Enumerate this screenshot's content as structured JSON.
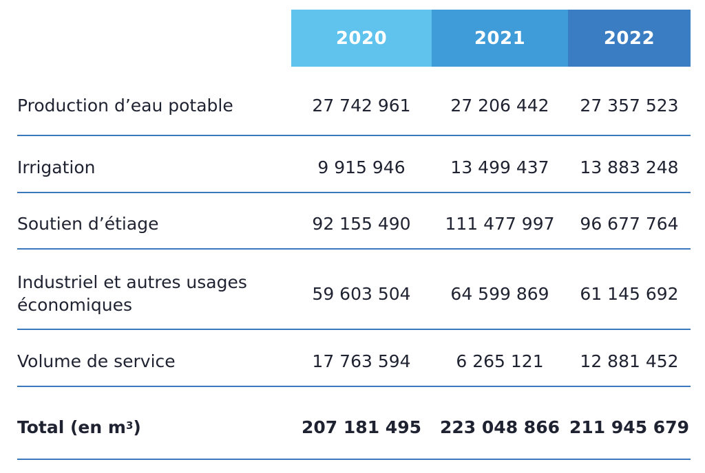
{
  "header": {
    "columns": [
      {
        "label": "2020",
        "color": "#5fc3ee"
      },
      {
        "label": "2021",
        "color": "#3f9cd9"
      },
      {
        "label": "2022",
        "color": "#3a7dc2"
      }
    ]
  },
  "rows": [
    {
      "label": "Production d’eau potable",
      "values": [
        "27 742 961",
        "27 206 442",
        "27 357 523"
      ]
    },
    {
      "label": "Irrigation",
      "values": [
        "9 915 946",
        "13 499 437",
        "13 883 248"
      ]
    },
    {
      "label": "Soutien d’étiage",
      "values": [
        "92 155 490",
        "111 477 997",
        "96 677 764"
      ]
    },
    {
      "label": "Industriel et autres usages économiques",
      "values": [
        "59 603 504",
        "64 599 869",
        "61 145 692"
      ]
    },
    {
      "label": "Volume de service",
      "values": [
        "17 763 594",
        "6 265 121",
        "12 881 452"
      ]
    }
  ],
  "total": {
    "label": "Total (en m",
    "unit_superscript": "3",
    "label_suffix": ")",
    "values": [
      "207 181 495",
      "223 048 866",
      "211 945 679"
    ]
  },
  "colors": {
    "divider": "#3a78bd",
    "text": "#1f2230"
  }
}
